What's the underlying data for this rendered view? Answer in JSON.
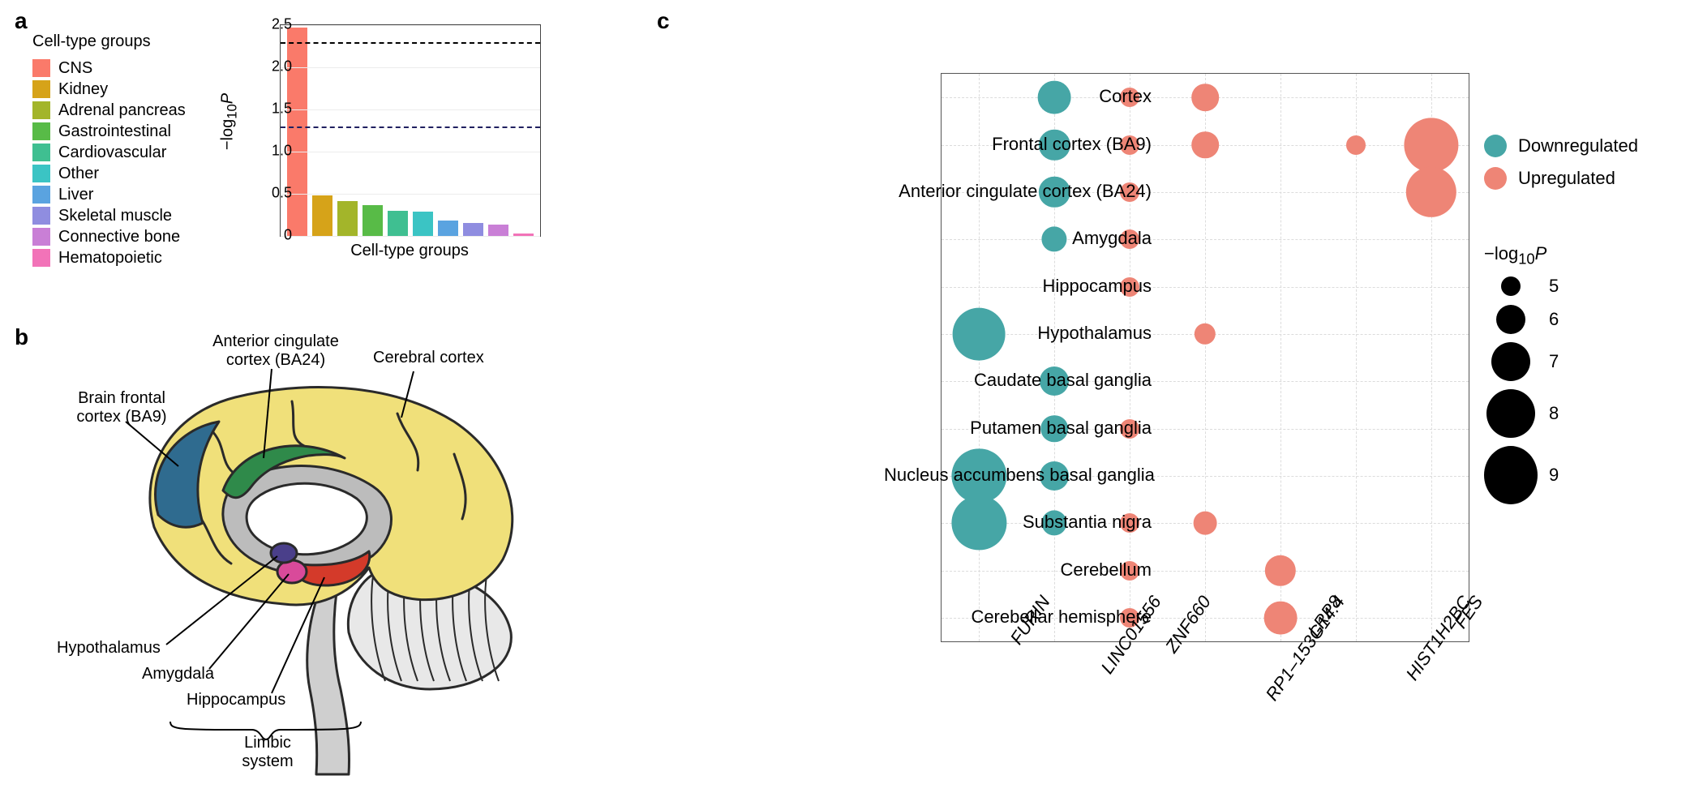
{
  "panelLabels": {
    "a": "a",
    "b": "b",
    "c": "c"
  },
  "panelA": {
    "legendTitle": "Cell-type groups",
    "xLabel": "Cell-type groups",
    "yLabelHtml": "−log<sub>10</sub><i>P</i>",
    "ylim": [
      0,
      2.5
    ],
    "yticks": [
      0,
      0.5,
      1.0,
      1.5,
      2.0,
      2.5
    ],
    "gridColor": "#ececec",
    "borderColor": "#444444",
    "hlines": [
      {
        "y": 2.3,
        "color": "#000000",
        "dash": "6,5"
      },
      {
        "y": 1.3,
        "color": "#202060",
        "dash": "6,5"
      }
    ],
    "bars": [
      {
        "label": "CNS",
        "value": 2.47,
        "color": "#fa7a6a"
      },
      {
        "label": "Kidney",
        "value": 0.48,
        "color": "#d6a319"
      },
      {
        "label": "Adrenal pancreas",
        "value": 0.41,
        "color": "#a3b52a"
      },
      {
        "label": "Gastrointestinal",
        "value": 0.37,
        "color": "#58bb47"
      },
      {
        "label": "Cardiovascular",
        "value": 0.3,
        "color": "#3fbf91"
      },
      {
        "label": "Other",
        "value": 0.29,
        "color": "#3bc4c4"
      },
      {
        "label": "Liver",
        "value": 0.18,
        "color": "#5aa3e0"
      },
      {
        "label": "Skeletal muscle",
        "value": 0.15,
        "color": "#8f8de0"
      },
      {
        "label": "Connective bone",
        "value": 0.13,
        "color": "#c97fd6"
      },
      {
        "label": "Hematopoietic",
        "value": 0.03,
        "color": "#f273b8"
      }
    ]
  },
  "panelB": {
    "labels": {
      "acc": "Anterior cingulate\ncortex (BA24)",
      "bfc": "Brain frontal\ncortex (BA9)",
      "cc": "Cerebral cortex",
      "hypo": "Hypothalamus",
      "amy": "Amygdala",
      "hippo": "Hippocampus",
      "limbic": "Limbic\nsystem"
    },
    "colors": {
      "cortex": "#f0e07a",
      "outline": "#2a2a2a",
      "frontal": "#2f6b8f",
      "acc": "#2f8a4a",
      "inner": "#bcbcbc",
      "hypothalamus": "#4a3f8a",
      "amygdala": "#d94a9a",
      "hippocampus": "#d43a2a",
      "cerebellum": "#e8e8e8",
      "stem": "#cfcfcf"
    }
  },
  "panelC": {
    "rows": [
      "Cortex",
      "Frontal cortex (BA9)",
      "Anterior cingulate cortex (BA24)",
      "Amygdala",
      "Hippocampus",
      "Hypothalamus",
      "Caudate basal ganglia",
      "Putamen basal ganglia",
      "Nucleus accumbens basal ganglia",
      "Substantia nigra",
      "Cerebellum",
      "Cerebellar hemisphere"
    ],
    "cols": [
      "FURIN",
      "LINC01556",
      "ZNF660",
      "RP1–153G14.4",
      "LRP8",
      "HIST1H2BC",
      "FES"
    ],
    "colors": {
      "down": "#46a6a6",
      "up": "#ee8576"
    },
    "gridColor": "#dcdcdc",
    "regLegend": {
      "down": "Downregulated",
      "up": "Upregulated"
    },
    "sizeLegend": {
      "titleHtml": "−log<sub>10</sub><i>P</i>",
      "items": [
        {
          "label": "5",
          "value": 5
        },
        {
          "label": "6",
          "value": 6
        },
        {
          "label": "7",
          "value": 7
        },
        {
          "label": "8",
          "value": 8
        },
        {
          "label": "9",
          "value": 9
        }
      ]
    },
    "sizeScale": {
      "minVal": 5,
      "maxVal": 9,
      "minPx": 24,
      "maxPx": 72
    },
    "points": [
      {
        "row": 0,
        "col": 1,
        "reg": "down",
        "value": 6.4
      },
      {
        "row": 0,
        "col": 2,
        "reg": "up",
        "value": 5.0
      },
      {
        "row": 0,
        "col": 3,
        "reg": "up",
        "value": 5.8
      },
      {
        "row": 1,
        "col": 1,
        "reg": "down",
        "value": 6.2
      },
      {
        "row": 1,
        "col": 2,
        "reg": "up",
        "value": 5.0
      },
      {
        "row": 1,
        "col": 3,
        "reg": "up",
        "value": 5.8
      },
      {
        "row": 1,
        "col": 5,
        "reg": "up",
        "value": 5.0
      },
      {
        "row": 1,
        "col": 6,
        "reg": "up",
        "value": 8.6
      },
      {
        "row": 2,
        "col": 1,
        "reg": "down",
        "value": 6.2
      },
      {
        "row": 2,
        "col": 2,
        "reg": "up",
        "value": 5.0
      },
      {
        "row": 2,
        "col": 6,
        "reg": "up",
        "value": 8.2
      },
      {
        "row": 3,
        "col": 1,
        "reg": "down",
        "value": 5.6
      },
      {
        "row": 3,
        "col": 2,
        "reg": "up",
        "value": 5.0
      },
      {
        "row": 4,
        "col": 2,
        "reg": "up",
        "value": 5.0
      },
      {
        "row": 5,
        "col": 0,
        "reg": "down",
        "value": 8.4
      },
      {
        "row": 5,
        "col": 3,
        "reg": "up",
        "value": 5.2
      },
      {
        "row": 6,
        "col": 1,
        "reg": "down",
        "value": 6.0
      },
      {
        "row": 7,
        "col": 1,
        "reg": "down",
        "value": 5.8
      },
      {
        "row": 7,
        "col": 2,
        "reg": "up",
        "value": 5.0
      },
      {
        "row": 8,
        "col": 0,
        "reg": "down",
        "value": 8.6
      },
      {
        "row": 8,
        "col": 1,
        "reg": "down",
        "value": 6.0
      },
      {
        "row": 9,
        "col": 0,
        "reg": "down",
        "value": 8.6
      },
      {
        "row": 9,
        "col": 1,
        "reg": "down",
        "value": 5.6
      },
      {
        "row": 9,
        "col": 2,
        "reg": "up",
        "value": 5.0
      },
      {
        "row": 9,
        "col": 3,
        "reg": "up",
        "value": 5.4
      },
      {
        "row": 10,
        "col": 2,
        "reg": "up",
        "value": 5.0
      },
      {
        "row": 10,
        "col": 4,
        "reg": "up",
        "value": 6.2
      },
      {
        "row": 11,
        "col": 2,
        "reg": "up",
        "value": 5.0
      },
      {
        "row": 11,
        "col": 4,
        "reg": "up",
        "value": 6.4
      }
    ]
  }
}
